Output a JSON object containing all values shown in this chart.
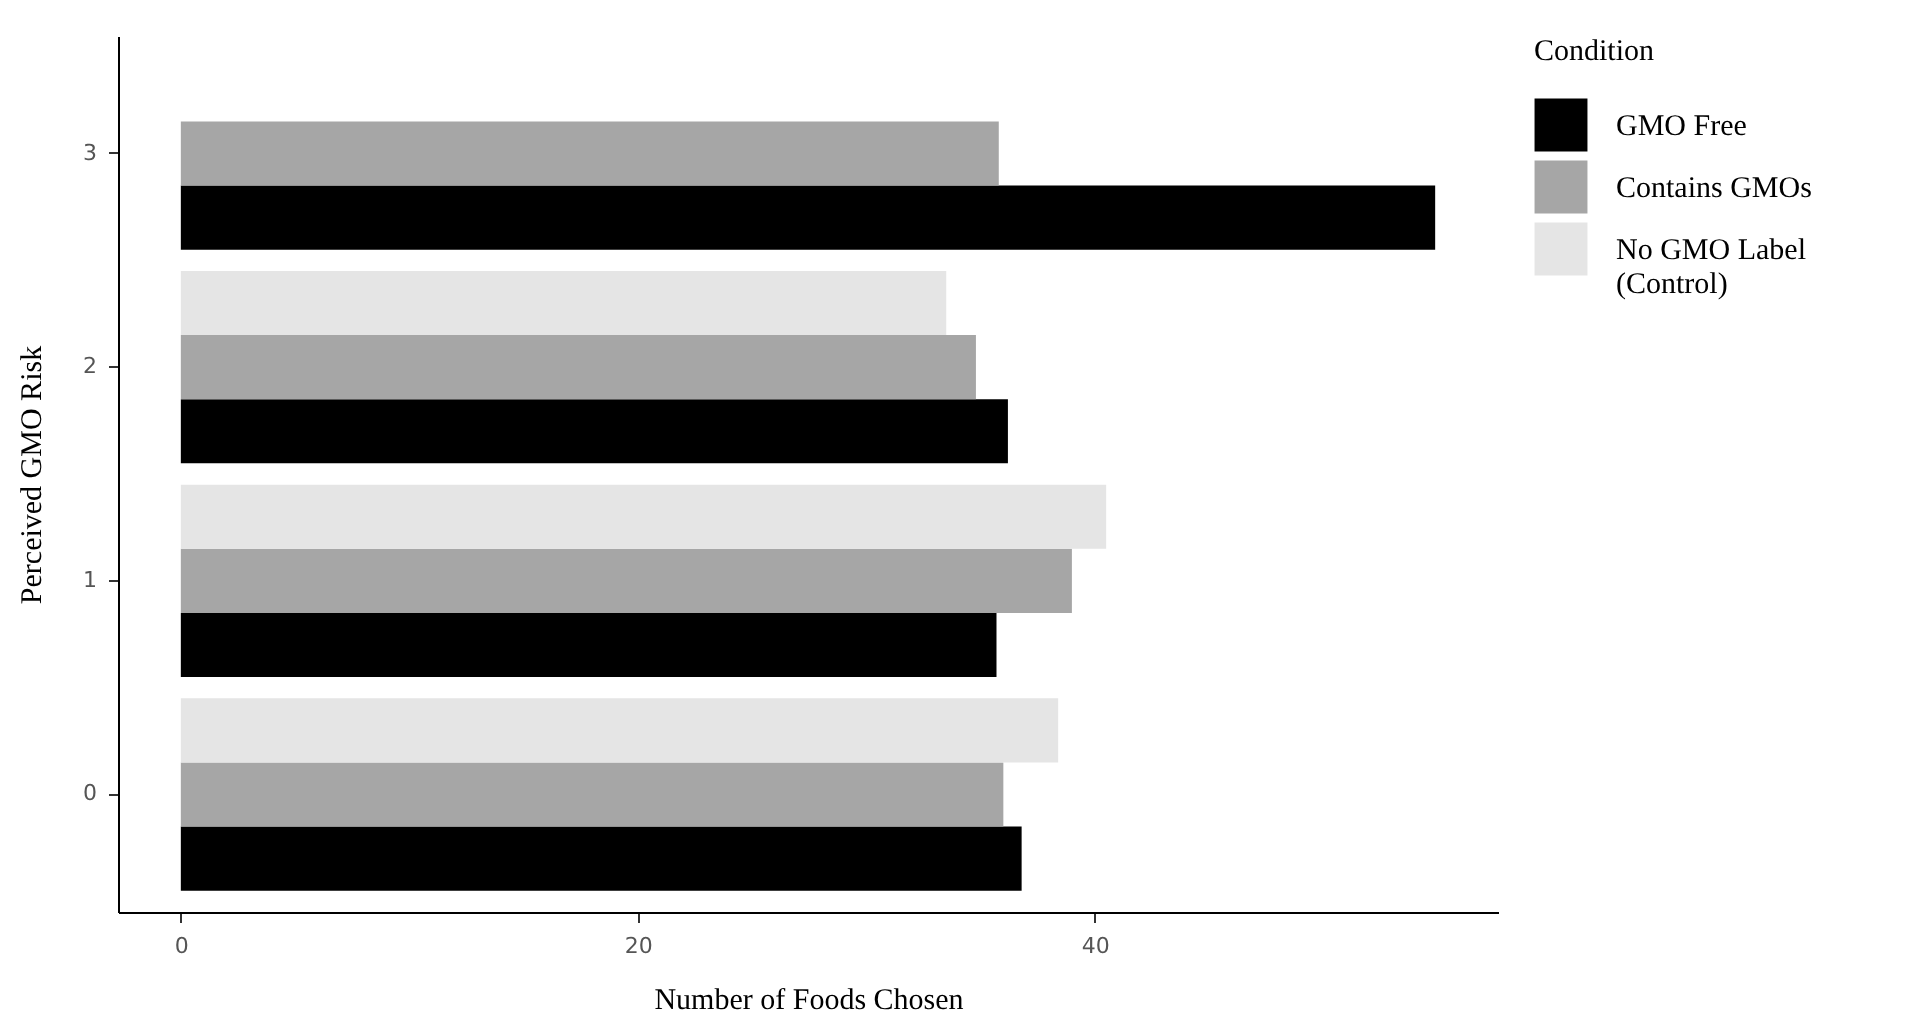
{
  "chart_data": {
    "type": "bar",
    "orientation": "horizontal",
    "xlabel": "Number of Foods Chosen",
    "ylabel": "Perceived GMO Risk",
    "legend_title": "Condition",
    "legend": "right",
    "grid": false,
    "categories": [
      "3",
      "2",
      "1",
      "0"
    ],
    "series": [
      {
        "name": "GMO Free",
        "color": "#000000",
        "values": [
          54.9,
          36.2,
          35.7,
          36.8
        ]
      },
      {
        "name": "Contains GMOs",
        "color": "#a6a6a6",
        "values": [
          35.8,
          34.8,
          39.0,
          36.0
        ]
      },
      {
        "name": "No GMO Label (Control)",
        "color": "#e5e5e5",
        "values": [
          null,
          33.5,
          40.5,
          38.4
        ]
      }
    ],
    "xlim": [
      -2.75,
      57.65
    ],
    "xticks": [
      0,
      20,
      40
    ]
  }
}
